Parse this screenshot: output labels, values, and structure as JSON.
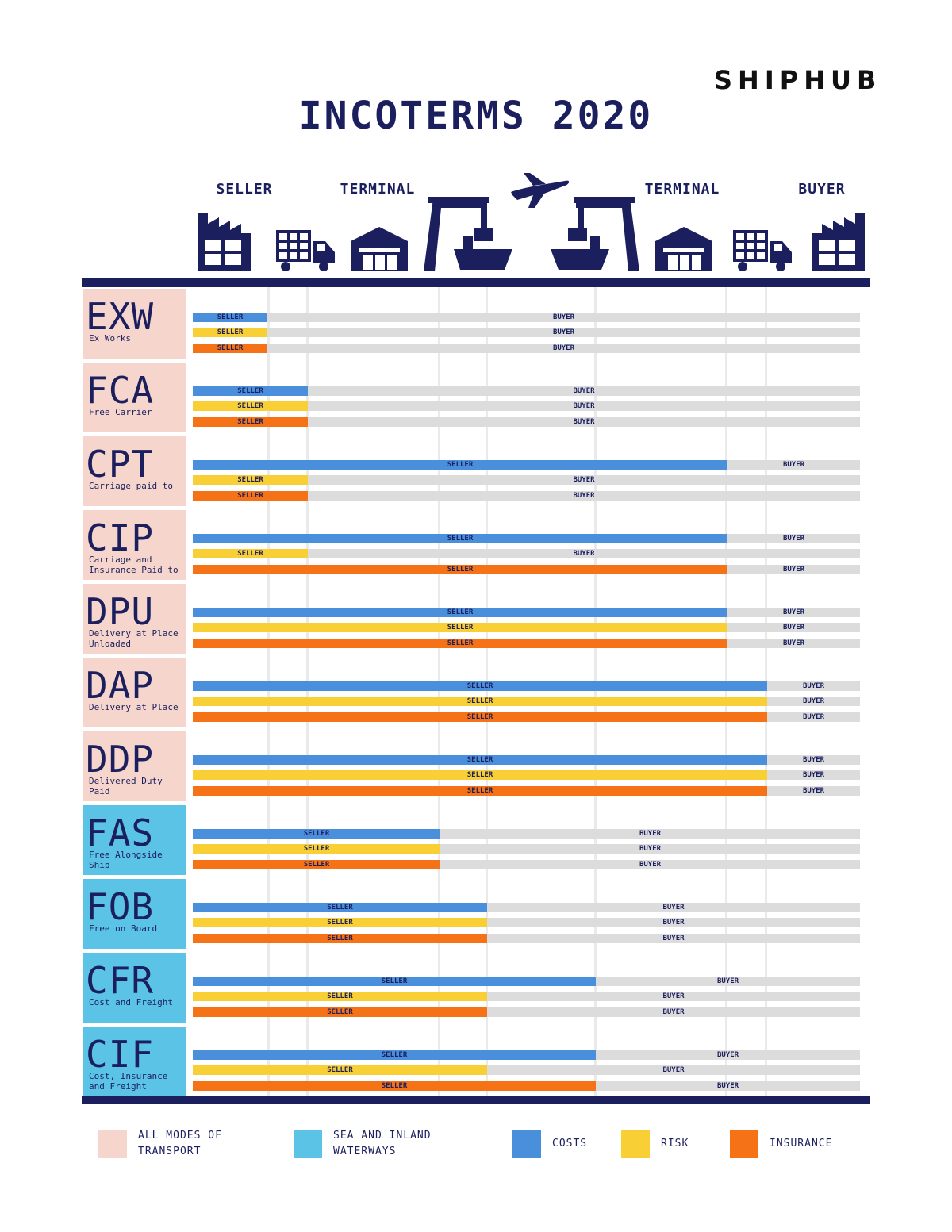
{
  "brand": "SHIPHUB",
  "title": "INCOTERMS 2020",
  "stages": [
    "SELLER",
    "TERMINAL",
    "TERMINAL",
    "BUYER"
  ],
  "icons": [
    "seller-factory-icon",
    "truck-icon",
    "warehouse-icon",
    "port-crane-ship-icon",
    "airplane-icon",
    "port-crane-ship-icon",
    "warehouse-icon",
    "truck-icon",
    "buyer-factory-icon"
  ],
  "colors": {
    "navy": "#1b1f5e",
    "all_modes": "#f6d6cc",
    "sea": "#5bc3e6",
    "costs": "#4a8fdc",
    "risk": "#f8cf34",
    "insurance": "#f57216",
    "buyer_track": "#dcdcdc"
  },
  "party_labels": {
    "seller": "SELLER",
    "buyer": "BUYER"
  },
  "terms": [
    {
      "code": "EXW",
      "name": "Ex Works",
      "mode": "all",
      "transfer": {
        "costs": 1,
        "risk": 1,
        "insurance": 1
      }
    },
    {
      "code": "FCA",
      "name": "Free Carrier",
      "mode": "all",
      "transfer": {
        "costs": 2,
        "risk": 2,
        "insurance": 2
      }
    },
    {
      "code": "CPT",
      "name": "Carriage paid to",
      "mode": "all",
      "transfer": {
        "costs": 6,
        "risk": 2,
        "insurance": 2
      }
    },
    {
      "code": "CIP",
      "name": "Carriage and Insurance Paid to",
      "mode": "all",
      "transfer": {
        "costs": 6,
        "risk": 2,
        "insurance": 6
      }
    },
    {
      "code": "DPU",
      "name": "Delivery at Place Unloaded",
      "mode": "all",
      "transfer": {
        "costs": 6,
        "risk": 6,
        "insurance": 6
      }
    },
    {
      "code": "DAP",
      "name": "Delivery at Place",
      "mode": "all",
      "transfer": {
        "costs": 7,
        "risk": 7,
        "insurance": 7
      }
    },
    {
      "code": "DDP",
      "name": "Delivered Duty Paid",
      "mode": "all",
      "transfer": {
        "costs": 7,
        "risk": 7,
        "insurance": 7
      }
    },
    {
      "code": "FAS",
      "name": "Free Alongside Ship",
      "mode": "sea",
      "transfer": {
        "costs": 3,
        "risk": 3,
        "insurance": 3
      }
    },
    {
      "code": "FOB",
      "name": "Free on Board",
      "mode": "sea",
      "transfer": {
        "costs": 4,
        "risk": 4,
        "insurance": 4
      }
    },
    {
      "code": "CFR",
      "name": "Cost and Freight",
      "mode": "sea",
      "transfer": {
        "costs": 5,
        "risk": 4,
        "insurance": 4
      }
    },
    {
      "code": "CIF",
      "name": "Cost, Insurance and Freight",
      "mode": "sea",
      "transfer": {
        "costs": 5,
        "risk": 4,
        "insurance": 5
      }
    }
  ],
  "legend": [
    {
      "label": "ALL MODES OF TRANSPORT",
      "color": "#f6d6cc"
    },
    {
      "label": "SEA AND INLAND WATERWAYS",
      "color": "#5bc3e6"
    },
    {
      "label": "COSTS",
      "color": "#4a8fdc"
    },
    {
      "label": "RISK",
      "color": "#f8cf34"
    },
    {
      "label": "INSURANCE",
      "color": "#f57216"
    }
  ]
}
